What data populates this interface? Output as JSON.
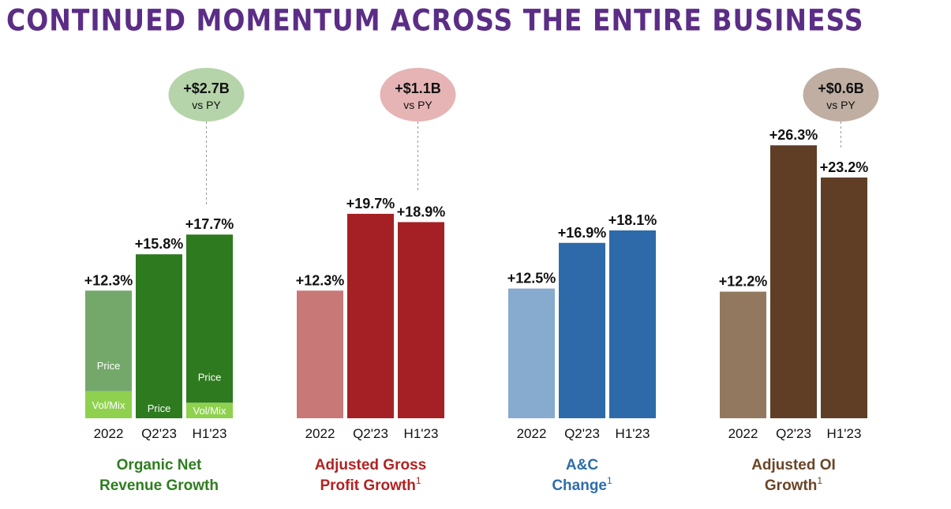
{
  "slide": {
    "title": "CONTINUED MOMENTUM ACROSS THE ENTIRE BUSINESS"
  },
  "chart_data": [
    {
      "type": "bar",
      "title": "Organic Net Revenue Growth",
      "title_lines": [
        "Organic Net",
        "Revenue Growth"
      ],
      "footnote": "",
      "title_color": "#2e7d1f",
      "categories": [
        "2022",
        "Q2'23",
        "H1'23"
      ],
      "values": [
        12.3,
        15.8,
        17.7
      ],
      "value_labels": [
        "+12.3%",
        "+15.8%",
        "+17.7%"
      ],
      "bar_colors": [
        "#74a86a",
        "#2d7a1f",
        "#2d7a1f"
      ],
      "segments": [
        [
          {
            "label": "Vol/Mix",
            "value": 2.6,
            "color": "#8fd14f"
          },
          {
            "label": "Price",
            "value": 9.7,
            "color": "#74a86a"
          }
        ],
        [
          {
            "label": "Price",
            "value": 15.8,
            "color": "#2d7a1f"
          }
        ],
        [
          {
            "label": "Vol/Mix",
            "value": 1.5,
            "color": "#8fd14f"
          },
          {
            "label": "Price",
            "value": 16.2,
            "color": "#2d7a1f"
          }
        ]
      ],
      "callout": {
        "value": "+$2.7B",
        "sub": "vs PY",
        "color": "#b5d4a9"
      },
      "ylim": [
        0,
        30
      ]
    },
    {
      "type": "bar",
      "title": "Adjusted Gross Profit Growth",
      "title_lines": [
        "Adjusted Gross",
        "Profit Growth"
      ],
      "footnote": "1",
      "title_color": "#b22222",
      "categories": [
        "2022",
        "Q2'23",
        "H1'23"
      ],
      "values": [
        12.3,
        19.7,
        18.9
      ],
      "value_labels": [
        "+12.3%",
        "+19.7%",
        "+18.9%"
      ],
      "bar_colors": [
        "#c97878",
        "#a52024",
        "#a52024"
      ],
      "callout": {
        "value": "+$1.1B",
        "sub": "vs PY",
        "color": "#e6b4b4"
      },
      "ylim": [
        0,
        30
      ]
    },
    {
      "type": "bar",
      "title": "A&C Change",
      "title_lines": [
        "A&C",
        "Change"
      ],
      "footnote": "1",
      "title_color": "#2e6da9",
      "categories": [
        "2022",
        "Q2'23",
        "H1'23"
      ],
      "values": [
        12.5,
        16.9,
        18.1
      ],
      "value_labels": [
        "+12.5%",
        "+16.9%",
        "+18.1%"
      ],
      "bar_colors": [
        "#87aacf",
        "#2e6aa9",
        "#2e6aa9"
      ],
      "ylim": [
        0,
        30
      ]
    },
    {
      "type": "bar",
      "title": "Adjusted OI Growth",
      "title_lines": [
        "Adjusted OI",
        "Growth"
      ],
      "footnote": "1",
      "title_color": "#6a4527",
      "categories": [
        "2022",
        "Q2'23",
        "H1'23"
      ],
      "values": [
        12.2,
        26.3,
        23.2
      ],
      "value_labels": [
        "+12.2%",
        "+26.3%",
        "+23.2%"
      ],
      "bar_colors": [
        "#937860",
        "#5f3e25",
        "#5f3e25"
      ],
      "callout": {
        "value": "+$0.6B",
        "sub": "vs PY",
        "color": "#bfaea1"
      },
      "ylim": [
        0,
        30
      ]
    }
  ]
}
